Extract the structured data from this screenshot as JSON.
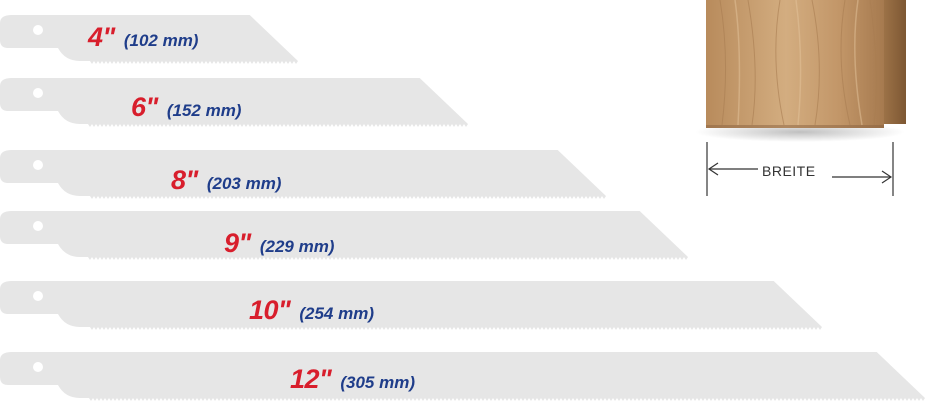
{
  "blades": [
    {
      "inch": "4\"",
      "mm": "(102 mm)"
    },
    {
      "inch": "6\"",
      "mm": "(152 mm)"
    },
    {
      "inch": "8\"",
      "mm": "(203 mm)"
    },
    {
      "inch": "9\"",
      "mm": "(229 mm)"
    },
    {
      "inch": "10\"",
      "mm": "(254 mm)"
    },
    {
      "inch": "12\"",
      "mm": "(305 mm)"
    }
  ],
  "wood_sample": {
    "width_label": "BREITE"
  },
  "colors": {
    "inch_text": "#d81e2c",
    "mm_text": "#1f3d8a",
    "blade": "#e6e6e6",
    "wood": "#c49a6c"
  }
}
